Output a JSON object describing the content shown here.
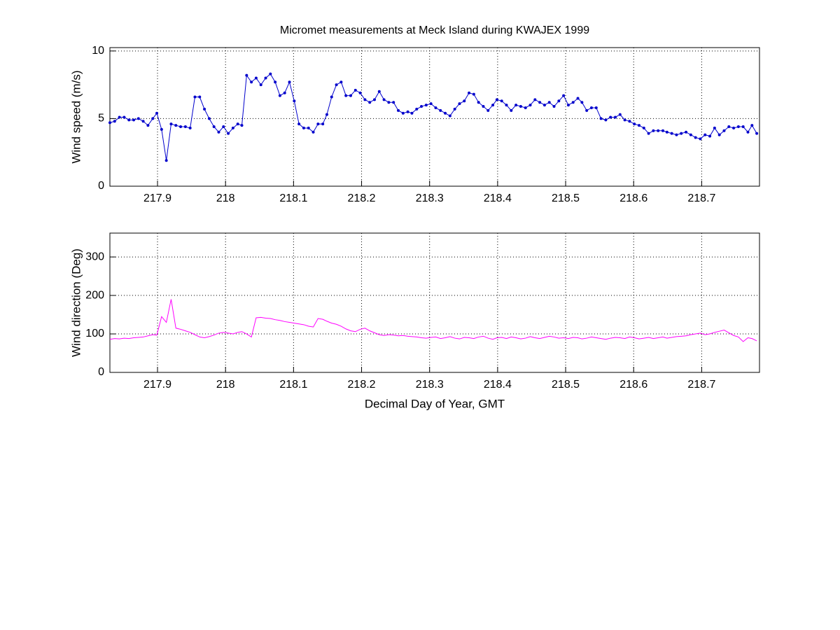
{
  "chart_data": [
    {
      "type": "line",
      "title": "Micromet measurements at Meck Island during KWAJEX 1999",
      "ylabel": "Wind speed (m/s)",
      "color": "#0000cc",
      "marker": "dot",
      "grid": true,
      "xlim": [
        217.83,
        218.785
      ],
      "xticks": [
        217.9,
        218,
        218.1,
        218.2,
        218.3,
        218.4,
        218.5,
        218.6,
        218.7
      ],
      "ylim": [
        0,
        10.25
      ],
      "yticks": [
        0,
        5,
        10
      ],
      "x": [
        217.83,
        217.837,
        217.844,
        217.851,
        217.858,
        217.865,
        217.872,
        217.879,
        217.886,
        217.893,
        217.899,
        217.906,
        217.913,
        217.92,
        217.927,
        217.934,
        217.941,
        217.948,
        217.955,
        217.962,
        217.969,
        217.976,
        217.983,
        217.99,
        217.997,
        218.004,
        218.011,
        218.018,
        218.024,
        218.031,
        218.038,
        218.045,
        218.052,
        218.059,
        218.066,
        218.073,
        218.08,
        218.087,
        218.094,
        218.101,
        218.108,
        218.115,
        218.122,
        218.129,
        218.136,
        218.143,
        218.149,
        218.156,
        218.163,
        218.17,
        218.177,
        218.184,
        218.191,
        218.198,
        218.205,
        218.212,
        218.219,
        218.226,
        218.233,
        218.24,
        218.247,
        218.254,
        218.261,
        218.268,
        218.274,
        218.281,
        218.288,
        218.295,
        218.302,
        218.309,
        218.316,
        218.323,
        218.33,
        218.337,
        218.344,
        218.351,
        218.358,
        218.365,
        218.372,
        218.379,
        218.386,
        218.393,
        218.399,
        218.406,
        218.413,
        218.42,
        218.427,
        218.434,
        218.441,
        218.448,
        218.455,
        218.462,
        218.469,
        218.476,
        218.483,
        218.49,
        218.497,
        218.504,
        218.511,
        218.518,
        218.524,
        218.531,
        218.538,
        218.545,
        218.552,
        218.559,
        218.566,
        218.573,
        218.58,
        218.587,
        218.594,
        218.601,
        218.608,
        218.615,
        218.622,
        218.629,
        218.636,
        218.643,
        218.649,
        218.656,
        218.663,
        218.67,
        218.677,
        218.684,
        218.691,
        218.698,
        218.705,
        218.712,
        218.719,
        218.726,
        218.733,
        218.74,
        218.747,
        218.754,
        218.761,
        218.768,
        218.774,
        218.781
      ],
      "values": [
        4.7,
        4.8,
        5.1,
        5.1,
        4.9,
        4.9,
        5.0,
        4.8,
        4.5,
        5.0,
        5.4,
        4.2,
        1.9,
        4.6,
        4.5,
        4.4,
        4.4,
        4.3,
        6.6,
        6.6,
        5.7,
        5.0,
        4.4,
        4.0,
        4.4,
        3.9,
        4.3,
        4.6,
        4.5,
        8.2,
        7.7,
        8.0,
        7.5,
        8.0,
        8.3,
        7.7,
        6.7,
        6.9,
        7.7,
        6.3,
        4.6,
        4.3,
        4.3,
        4.0,
        4.6,
        4.6,
        5.3,
        6.6,
        7.5,
        7.7,
        6.7,
        6.7,
        7.1,
        6.9,
        6.4,
        6.2,
        6.4,
        7.0,
        6.4,
        6.2,
        6.2,
        5.6,
        5.4,
        5.5,
        5.4,
        5.7,
        5.9,
        6.0,
        6.1,
        5.8,
        5.6,
        5.4,
        5.2,
        5.7,
        6.1,
        6.3,
        6.9,
        6.8,
        6.2,
        5.9,
        5.6,
        6.0,
        6.4,
        6.3,
        6.0,
        5.6,
        6.0,
        5.9,
        5.8,
        6.0,
        6.4,
        6.2,
        6.0,
        6.2,
        5.9,
        6.3,
        6.7,
        6.0,
        6.2,
        6.5,
        6.2,
        5.6,
        5.8,
        5.8,
        5.0,
        4.9,
        5.1,
        5.1,
        5.3,
        4.9,
        4.8,
        4.6,
        4.5,
        4.3,
        3.9,
        4.1,
        4.1,
        4.1,
        4.0,
        3.9,
        3.8,
        3.9,
        4.0,
        3.8,
        3.6,
        3.5,
        3.8,
        3.7,
        4.3,
        3.8,
        4.1,
        4.4,
        4.3,
        4.4,
        4.4,
        4.0,
        4.5,
        3.9
      ]
    },
    {
      "type": "line",
      "xlabel": "Decimal Day of Year, GMT",
      "ylabel": "Wind direction (Deg)",
      "color": "#ff00ff",
      "grid": true,
      "xlim": [
        217.83,
        218.785
      ],
      "xticks": [
        217.9,
        218,
        218.1,
        218.2,
        218.3,
        218.4,
        218.5,
        218.6,
        218.7
      ],
      "ylim": [
        0,
        362
      ],
      "yticks": [
        0,
        100,
        200,
        300
      ],
      "x": [
        217.83,
        217.837,
        217.844,
        217.851,
        217.858,
        217.865,
        217.872,
        217.879,
        217.886,
        217.893,
        217.899,
        217.906,
        217.913,
        217.92,
        217.927,
        217.934,
        217.941,
        217.948,
        217.955,
        217.962,
        217.969,
        217.976,
        217.983,
        217.99,
        217.997,
        218.004,
        218.011,
        218.018,
        218.024,
        218.031,
        218.038,
        218.045,
        218.052,
        218.059,
        218.066,
        218.073,
        218.08,
        218.087,
        218.094,
        218.101,
        218.108,
        218.115,
        218.122,
        218.129,
        218.136,
        218.143,
        218.149,
        218.156,
        218.163,
        218.17,
        218.177,
        218.184,
        218.191,
        218.198,
        218.205,
        218.212,
        218.219,
        218.226,
        218.233,
        218.24,
        218.247,
        218.254,
        218.261,
        218.268,
        218.274,
        218.281,
        218.288,
        218.295,
        218.302,
        218.309,
        218.316,
        218.323,
        218.33,
        218.337,
        218.344,
        218.351,
        218.358,
        218.365,
        218.372,
        218.379,
        218.386,
        218.393,
        218.399,
        218.406,
        218.413,
        218.42,
        218.427,
        218.434,
        218.441,
        218.448,
        218.455,
        218.462,
        218.469,
        218.476,
        218.483,
        218.49,
        218.497,
        218.504,
        218.511,
        218.518,
        218.524,
        218.531,
        218.538,
        218.545,
        218.552,
        218.559,
        218.566,
        218.573,
        218.58,
        218.587,
        218.594,
        218.601,
        218.608,
        218.615,
        218.622,
        218.629,
        218.636,
        218.643,
        218.649,
        218.656,
        218.663,
        218.67,
        218.677,
        218.684,
        218.691,
        218.698,
        218.705,
        218.712,
        218.719,
        218.726,
        218.733,
        218.74,
        218.747,
        218.754,
        218.761,
        218.768,
        218.774,
        218.781
      ],
      "values": [
        86,
        88,
        87,
        89,
        88,
        90,
        91,
        92,
        95,
        98,
        97,
        145,
        130,
        190,
        115,
        112,
        108,
        104,
        98,
        92,
        90,
        93,
        97,
        102,
        104,
        102,
        100,
        104,
        106,
        100,
        92,
        142,
        143,
        141,
        140,
        137,
        135,
        132,
        130,
        128,
        126,
        124,
        120,
        118,
        140,
        138,
        133,
        128,
        125,
        120,
        113,
        108,
        106,
        112,
        115,
        108,
        103,
        98,
        96,
        98,
        97,
        95,
        96,
        94,
        93,
        92,
        90,
        89,
        91,
        92,
        88,
        90,
        93,
        89,
        87,
        91,
        90,
        88,
        92,
        94,
        89,
        86,
        90,
        91,
        88,
        92,
        90,
        87,
        89,
        93,
        90,
        88,
        91,
        94,
        92,
        89,
        90,
        88,
        91,
        90,
        87,
        89,
        92,
        90,
        88,
        86,
        89,
        91,
        90,
        88,
        92,
        90,
        87,
        89,
        91,
        88,
        90,
        92,
        89,
        91,
        93,
        94,
        95,
        98,
        100,
        102,
        98,
        100,
        104,
        107,
        110,
        103,
        96,
        92,
        80,
        90,
        88,
        82
      ]
    }
  ]
}
